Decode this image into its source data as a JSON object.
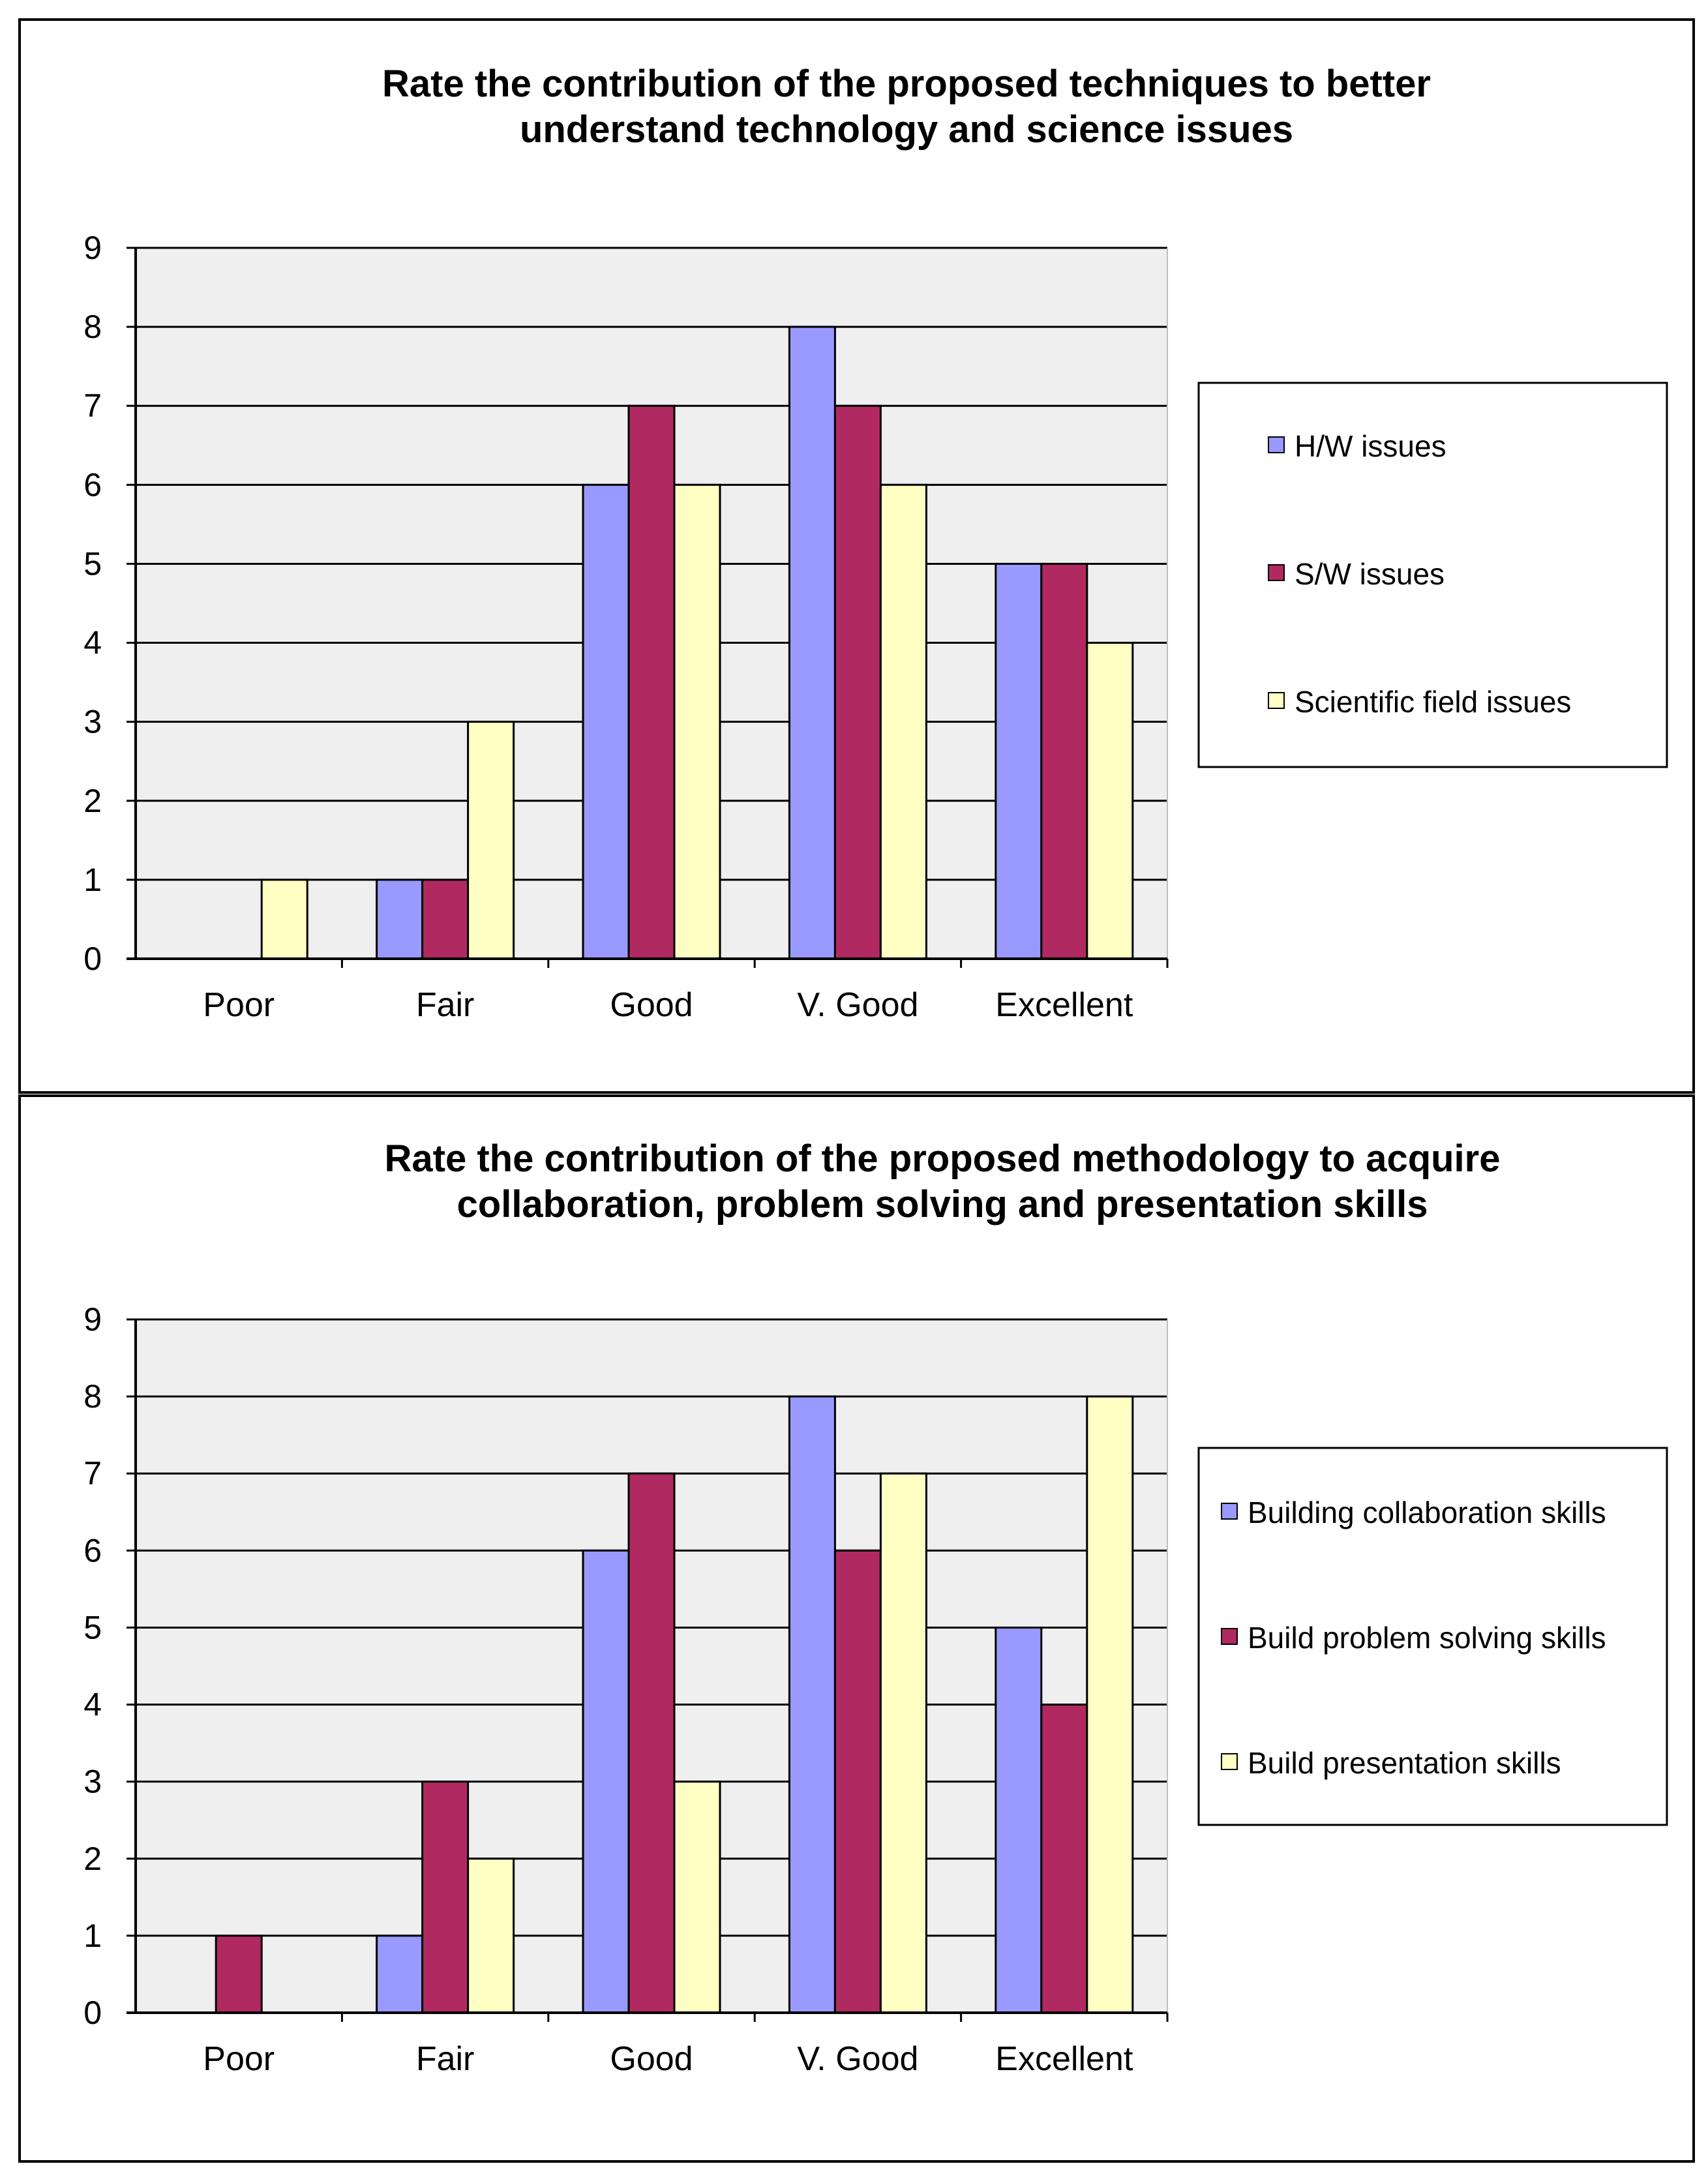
{
  "chart_data": [
    {
      "type": "bar",
      "title_lines": [
        "Rate the contribution of the proposed techniques to better",
        "understand technology and science issues"
      ],
      "categories": [
        "Poor",
        "Fair",
        "Good",
        "V. Good",
        "Excellent"
      ],
      "ylim": [
        0,
        9
      ],
      "yticks": [
        "0",
        "1",
        "2",
        "3",
        "4",
        "5",
        "6",
        "7",
        "8",
        "9"
      ],
      "grid": true,
      "legend_position": "right",
      "series": [
        {
          "name": "H/W issues",
          "color": "#9999ff",
          "values": [
            0,
            1,
            6,
            8,
            5
          ]
        },
        {
          "name": "S/W issues",
          "color": "#b02a61",
          "values": [
            0,
            1,
            7,
            7,
            5
          ]
        },
        {
          "name": "Scientific field issues",
          "color": "#ffffc4",
          "values": [
            1,
            3,
            6,
            6,
            4
          ]
        }
      ]
    },
    {
      "type": "bar",
      "title_lines": [
        "Rate the contribution of the proposed methodology to acquire",
        "collaboration, problem solving and presentation skills"
      ],
      "categories": [
        "Poor",
        "Fair",
        "Good",
        "V. Good",
        "Excellent"
      ],
      "ylim": [
        0,
        9
      ],
      "yticks": [
        "0",
        "1",
        "2",
        "3",
        "4",
        "5",
        "6",
        "7",
        "8",
        "9"
      ],
      "grid": true,
      "legend_position": "right",
      "series": [
        {
          "name": "Building collaboration skills",
          "color": "#9999ff",
          "values": [
            0,
            1,
            6,
            8,
            5
          ]
        },
        {
          "name": "Build problem solving skills",
          "color": "#b02a61",
          "values": [
            1,
            3,
            7,
            6,
            4
          ]
        },
        {
          "name": "Build presentation skills",
          "color": "#ffffc4",
          "values": [
            0,
            2,
            3,
            7,
            8
          ]
        }
      ]
    }
  ],
  "colors": {
    "plot_background": "#efefef",
    "frame": "#000000"
  }
}
